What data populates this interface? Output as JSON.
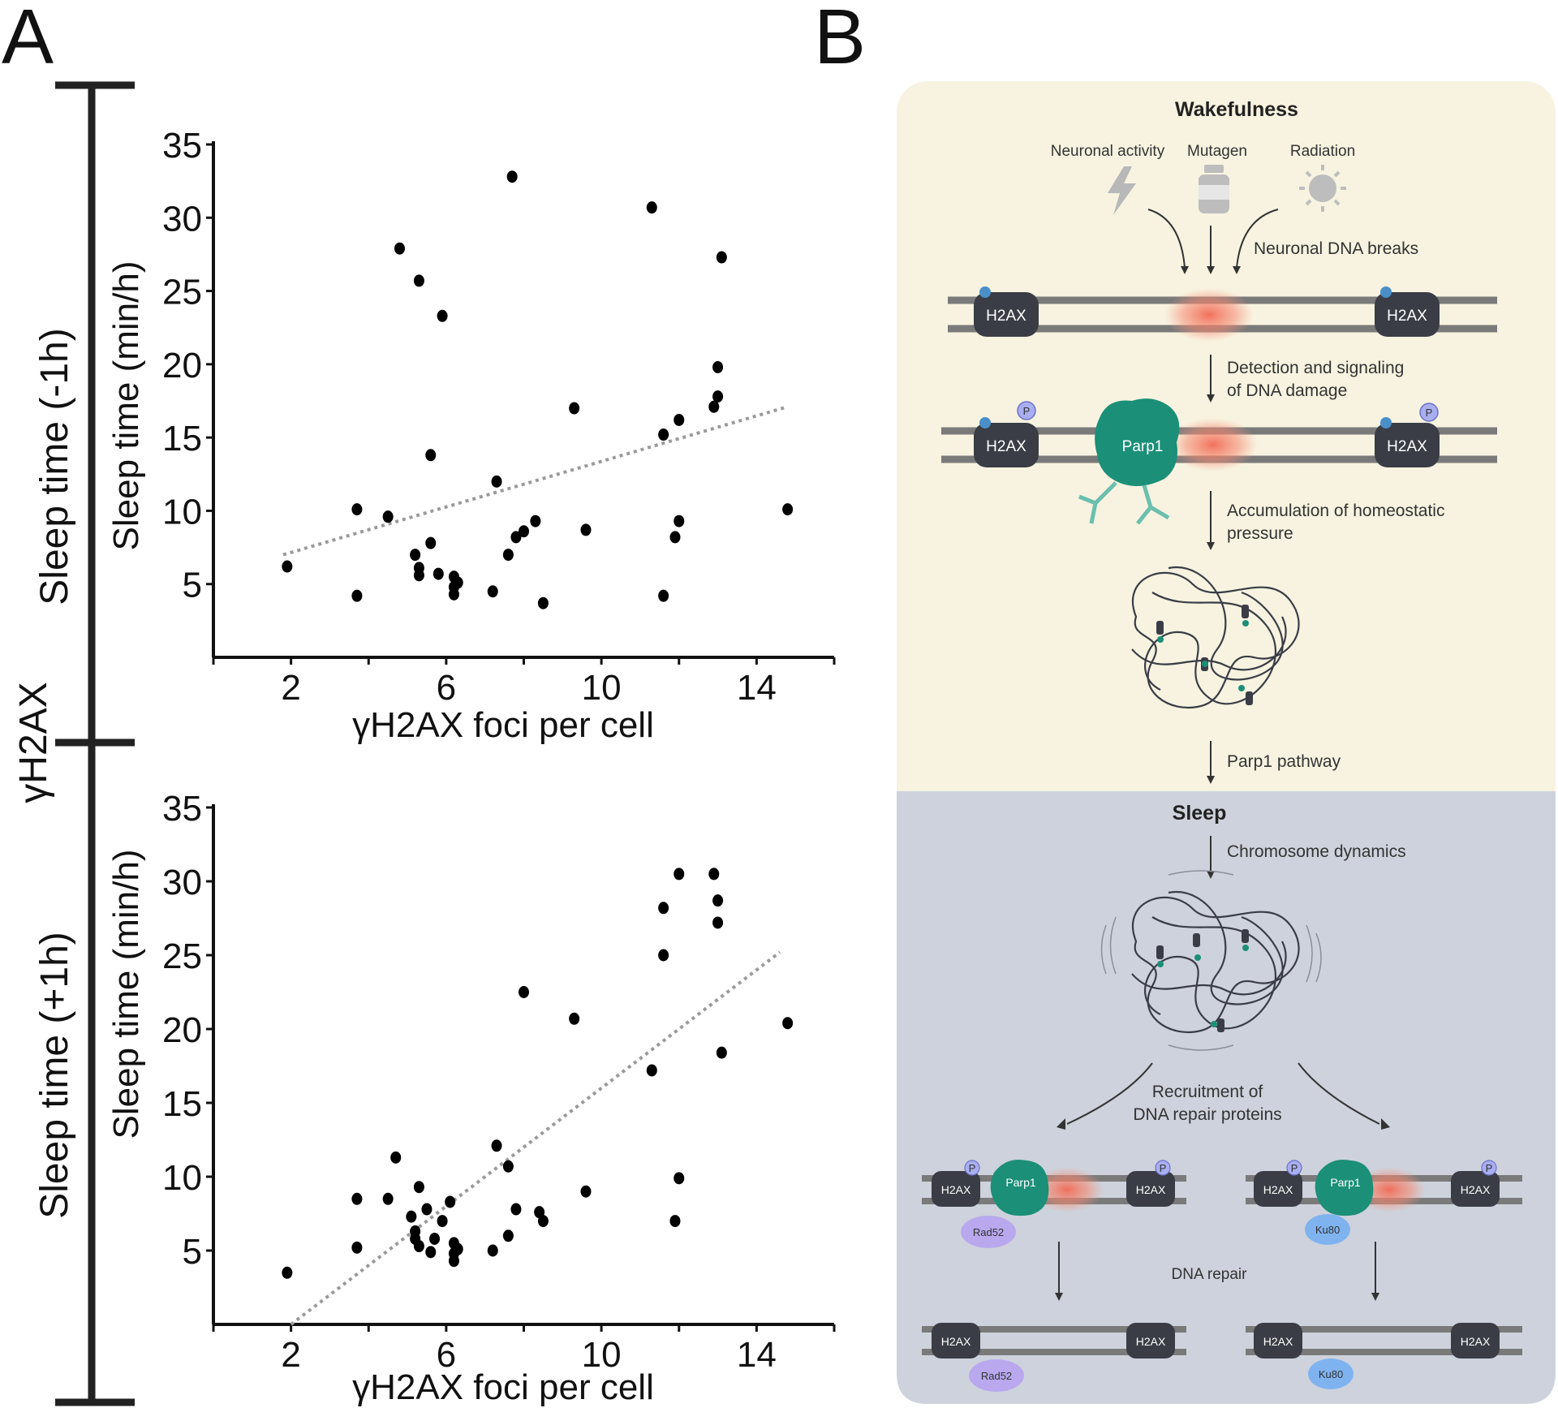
{
  "panel_a": {
    "letter": "A",
    "side_label": "γH2AX",
    "chart_data": [
      {
        "type": "scatter",
        "outer_label": "Sleep time (-1h)",
        "ylabel": "Sleep time (min/h)",
        "xlabel": "γH2AX foci per cell",
        "xlim": [
          0,
          16
        ],
        "ylim": [
          0,
          35
        ],
        "xticks": [
          2,
          6,
          10,
          14
        ],
        "yticks": [
          5,
          10,
          15,
          20,
          25,
          30,
          35
        ],
        "trendline": {
          "x": [
            1.8,
            14.8
          ],
          "y": [
            7.0,
            17.1
          ],
          "style": "dotted"
        },
        "points": [
          {
            "x": 1.9,
            "y": 6.2
          },
          {
            "x": 3.7,
            "y": 10.1
          },
          {
            "x": 3.7,
            "y": 4.2
          },
          {
            "x": 4.5,
            "y": 9.6
          },
          {
            "x": 4.8,
            "y": 27.9
          },
          {
            "x": 5.3,
            "y": 25.7
          },
          {
            "x": 5.6,
            "y": 13.8
          },
          {
            "x": 5.6,
            "y": 7.8
          },
          {
            "x": 5.2,
            "y": 7.0
          },
          {
            "x": 5.3,
            "y": 6.1
          },
          {
            "x": 5.3,
            "y": 5.6
          },
          {
            "x": 5.8,
            "y": 5.7
          },
          {
            "x": 5.9,
            "y": 23.3
          },
          {
            "x": 6.2,
            "y": 5.5
          },
          {
            "x": 6.2,
            "y": 4.8
          },
          {
            "x": 6.2,
            "y": 4.3
          },
          {
            "x": 6.3,
            "y": 5.1
          },
          {
            "x": 7.2,
            "y": 4.5
          },
          {
            "x": 7.3,
            "y": 12.0
          },
          {
            "x": 7.6,
            "y": 7.0
          },
          {
            "x": 7.7,
            "y": 32.8
          },
          {
            "x": 7.8,
            "y": 8.2
          },
          {
            "x": 8.0,
            "y": 8.6
          },
          {
            "x": 8.3,
            "y": 9.3
          },
          {
            "x": 8.5,
            "y": 3.7
          },
          {
            "x": 9.3,
            "y": 17.0
          },
          {
            "x": 9.6,
            "y": 8.7
          },
          {
            "x": 11.3,
            "y": 30.7
          },
          {
            "x": 11.6,
            "y": 15.2
          },
          {
            "x": 11.6,
            "y": 4.2
          },
          {
            "x": 11.9,
            "y": 8.2
          },
          {
            "x": 12.0,
            "y": 9.3
          },
          {
            "x": 12.0,
            "y": 16.2
          },
          {
            "x": 12.9,
            "y": 17.1
          },
          {
            "x": 13.0,
            "y": 17.8
          },
          {
            "x": 13.0,
            "y": 19.8
          },
          {
            "x": 13.1,
            "y": 27.3
          },
          {
            "x": 14.8,
            "y": 10.1
          }
        ]
      },
      {
        "type": "scatter",
        "outer_label": "Sleep time (+1h)",
        "ylabel": "Sleep time (min/h)",
        "xlabel": "γH2AX foci per cell",
        "xlim": [
          0,
          16
        ],
        "ylim": [
          0,
          35
        ],
        "xticks": [
          2,
          6,
          10,
          14
        ],
        "yticks": [
          5,
          10,
          15,
          20,
          25,
          30,
          35
        ],
        "trendline": {
          "x": [
            2.0,
            14.6
          ],
          "y": [
            0.0,
            25.2
          ],
          "style": "dotted"
        },
        "points": [
          {
            "x": 1.9,
            "y": 3.5
          },
          {
            "x": 3.7,
            "y": 8.5
          },
          {
            "x": 3.7,
            "y": 5.2
          },
          {
            "x": 4.5,
            "y": 8.5
          },
          {
            "x": 4.7,
            "y": 11.3
          },
          {
            "x": 5.1,
            "y": 7.3
          },
          {
            "x": 5.2,
            "y": 6.3
          },
          {
            "x": 5.2,
            "y": 5.8
          },
          {
            "x": 5.3,
            "y": 5.3
          },
          {
            "x": 5.3,
            "y": 9.3
          },
          {
            "x": 5.5,
            "y": 7.8
          },
          {
            "x": 5.6,
            "y": 4.9
          },
          {
            "x": 5.7,
            "y": 5.8
          },
          {
            "x": 5.9,
            "y": 7.0
          },
          {
            "x": 6.1,
            "y": 8.3
          },
          {
            "x": 6.2,
            "y": 5.5
          },
          {
            "x": 6.2,
            "y": 4.8
          },
          {
            "x": 6.2,
            "y": 4.3
          },
          {
            "x": 6.3,
            "y": 5.1
          },
          {
            "x": 7.2,
            "y": 5.0
          },
          {
            "x": 7.3,
            "y": 12.1
          },
          {
            "x": 7.6,
            "y": 10.7
          },
          {
            "x": 7.6,
            "y": 6.0
          },
          {
            "x": 7.8,
            "y": 7.8
          },
          {
            "x": 8.0,
            "y": 22.5
          },
          {
            "x": 8.4,
            "y": 7.6
          },
          {
            "x": 8.5,
            "y": 7.0
          },
          {
            "x": 9.3,
            "y": 20.7
          },
          {
            "x": 9.6,
            "y": 9.0
          },
          {
            "x": 11.3,
            "y": 17.2
          },
          {
            "x": 11.6,
            "y": 28.2
          },
          {
            "x": 11.6,
            "y": 25.0
          },
          {
            "x": 11.9,
            "y": 7.0
          },
          {
            "x": 12.0,
            "y": 30.5
          },
          {
            "x": 12.0,
            "y": 9.9
          },
          {
            "x": 12.9,
            "y": 30.5
          },
          {
            "x": 13.0,
            "y": 28.7
          },
          {
            "x": 13.0,
            "y": 27.2
          },
          {
            "x": 13.1,
            "y": 18.4
          },
          {
            "x": 14.8,
            "y": 20.4
          }
        ]
      }
    ]
  },
  "panel_b": {
    "letter": "B",
    "wake_title": "Wakefulness",
    "sleep_title": "Sleep",
    "stressors": [
      "Neuronal activity",
      "Mutagen",
      "Radiation"
    ],
    "steps": {
      "breaks": "Neuronal DNA breaks",
      "detection_1": "Detection and signaling",
      "detection_2": "of DNA damage",
      "accum_1": "Accumulation of homeostatic",
      "accum_2": "pressure",
      "parp1_pathway": "Parp1 pathway",
      "chromosome": "Chromosome dynamics",
      "recruit_1": "Recruitment of",
      "recruit_2": "DNA repair proteins",
      "repair": "DNA repair"
    },
    "labels": {
      "h2ax": "H2AX",
      "p": "P",
      "parp1": "Parp1",
      "rad52": "Rad52",
      "ku80": "Ku80"
    },
    "colors": {
      "wake_bg": "#f7f3e0",
      "sleep_bg": "#cdd2dc",
      "parp1": "#1b8f78",
      "damage": "#f07060",
      "rad52": "#b9a8ee",
      "ku80": "#7fb3f0"
    }
  }
}
